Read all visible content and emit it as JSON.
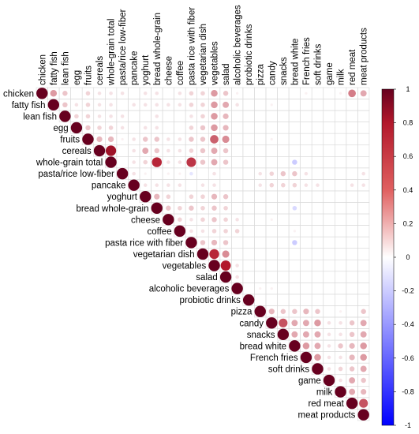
{
  "chart_data": {
    "type": "heatmap",
    "shape": "upper-triangle-circles",
    "title": "",
    "variables": [
      "chicken",
      "fatty fish",
      "lean fish",
      "egg",
      "fruits",
      "cereals",
      "whole-grain total",
      "pasta/rice low-fiber",
      "pancake",
      "yoghurt",
      "bread whole-grain",
      "cheese",
      "coffee",
      "pasta rice with fiber",
      "vegetarian dish",
      "vegetables",
      "salad",
      "alcoholic beverages",
      "probiotic drinks",
      "pizza",
      "candy",
      "snacks",
      "bread white",
      "French fries",
      "soft drinks",
      "game",
      "milk",
      "red meat",
      "meat products"
    ],
    "correlations": [
      {
        "i": 0,
        "j": 23,
        "r": 0.05
      },
      {
        "i": 0,
        "j": 26,
        "r": 0.05
      },
      {
        "i": 0,
        "j": 27,
        "r": 0.45
      },
      {
        "i": 0,
        "j": 28,
        "r": 0.3
      },
      {
        "i": 0,
        "j": 1,
        "r": 0.35
      },
      {
        "i": 0,
        "j": 2,
        "r": 0.2
      },
      {
        "i": 0,
        "j": 4,
        "r": 0.15
      },
      {
        "i": 0,
        "j": 5,
        "r": 0.1
      },
      {
        "i": 0,
        "j": 6,
        "r": 0.1
      },
      {
        "i": 0,
        "j": 7,
        "r": 0.1
      },
      {
        "i": 0,
        "j": 9,
        "r": 0.1
      },
      {
        "i": 0,
        "j": 10,
        "r": 0.1
      },
      {
        "i": 0,
        "j": 12,
        "r": 0.1
      },
      {
        "i": 0,
        "j": 13,
        "r": 0.15
      },
      {
        "i": 0,
        "j": 14,
        "r": 0.15
      },
      {
        "i": 0,
        "j": 15,
        "r": 0.35
      },
      {
        "i": 0,
        "j": 16,
        "r": 0.2
      },
      {
        "i": 0,
        "j": 17,
        "r": 0.05
      },
      {
        "i": 1,
        "j": 2,
        "r": 0.2
      },
      {
        "i": 1,
        "j": 3,
        "r": 0.1
      },
      {
        "i": 1,
        "j": 4,
        "r": 0.15
      },
      {
        "i": 1,
        "j": 5,
        "r": 0.1
      },
      {
        "i": 1,
        "j": 6,
        "r": 0.1
      },
      {
        "i": 1,
        "j": 8,
        "r": 0.1
      },
      {
        "i": 1,
        "j": 9,
        "r": 0.1
      },
      {
        "i": 1,
        "j": 10,
        "r": 0.1
      },
      {
        "i": 1,
        "j": 11,
        "r": 0.1
      },
      {
        "i": 1,
        "j": 12,
        "r": 0.1
      },
      {
        "i": 1,
        "j": 13,
        "r": 0.15
      },
      {
        "i": 1,
        "j": 14,
        "r": 0.15
      },
      {
        "i": 1,
        "j": 15,
        "r": 0.35
      },
      {
        "i": 1,
        "j": 16,
        "r": 0.3
      },
      {
        "i": 1,
        "j": 17,
        "r": 0.1
      },
      {
        "i": 1,
        "j": 20,
        "r": 0.05
      },
      {
        "i": 2,
        "j": 3,
        "r": 0.15
      },
      {
        "i": 2,
        "j": 4,
        "r": 0.15
      },
      {
        "i": 2,
        "j": 5,
        "r": 0.1
      },
      {
        "i": 2,
        "j": 6,
        "r": 0.1
      },
      {
        "i": 2,
        "j": 7,
        "r": 0.1
      },
      {
        "i": 2,
        "j": 10,
        "r": 0.1
      },
      {
        "i": 2,
        "j": 13,
        "r": 0.1
      },
      {
        "i": 2,
        "j": 14,
        "r": 0.15
      },
      {
        "i": 2,
        "j": 15,
        "r": 0.35
      },
      {
        "i": 2,
        "j": 16,
        "r": 0.25
      },
      {
        "i": 3,
        "j": 4,
        "r": 0.2
      },
      {
        "i": 3,
        "j": 5,
        "r": 0.15
      },
      {
        "i": 3,
        "j": 6,
        "r": 0.15
      },
      {
        "i": 3,
        "j": 7,
        "r": 0.1
      },
      {
        "i": 3,
        "j": 9,
        "r": 0.1
      },
      {
        "i": 3,
        "j": 10,
        "r": 0.1
      },
      {
        "i": 3,
        "j": 13,
        "r": 0.15
      },
      {
        "i": 3,
        "j": 14,
        "r": 0.2
      },
      {
        "i": 3,
        "j": 15,
        "r": 0.35
      },
      {
        "i": 3,
        "j": 16,
        "r": 0.25
      },
      {
        "i": 4,
        "j": 5,
        "r": 0.25
      },
      {
        "i": 4,
        "j": 6,
        "r": 0.25
      },
      {
        "i": 4,
        "j": 7,
        "r": 0.05
      },
      {
        "i": 4,
        "j": 8,
        "r": 0.1
      },
      {
        "i": 4,
        "j": 9,
        "r": 0.2
      },
      {
        "i": 4,
        "j": 10,
        "r": 0.2
      },
      {
        "i": 4,
        "j": 11,
        "r": 0.1
      },
      {
        "i": 4,
        "j": 12,
        "r": 0.1
      },
      {
        "i": 4,
        "j": 13,
        "r": 0.2
      },
      {
        "i": 4,
        "j": 14,
        "r": 0.2
      },
      {
        "i": 4,
        "j": 15,
        "r": 0.55
      },
      {
        "i": 4,
        "j": 16,
        "r": 0.4
      },
      {
        "i": 4,
        "j": 20,
        "r": 0.05
      },
      {
        "i": 5,
        "j": 6,
        "r": 0.85
      },
      {
        "i": 5,
        "j": 8,
        "r": 0.1
      },
      {
        "i": 5,
        "j": 9,
        "r": 0.3
      },
      {
        "i": 5,
        "j": 10,
        "r": 0.2
      },
      {
        "i": 5,
        "j": 11,
        "r": 0.1
      },
      {
        "i": 5,
        "j": 12,
        "r": 0.1
      },
      {
        "i": 5,
        "j": 13,
        "r": 0.15
      },
      {
        "i": 5,
        "j": 14,
        "r": 0.2
      },
      {
        "i": 5,
        "j": 15,
        "r": 0.3
      },
      {
        "i": 5,
        "j": 16,
        "r": 0.2
      },
      {
        "i": 6,
        "j": 8,
        "r": 0.1
      },
      {
        "i": 6,
        "j": 9,
        "r": 0.15
      },
      {
        "i": 6,
        "j": 10,
        "r": 0.75
      },
      {
        "i": 6,
        "j": 11,
        "r": 0.1
      },
      {
        "i": 6,
        "j": 12,
        "r": 0.1
      },
      {
        "i": 6,
        "j": 13,
        "r": 0.7
      },
      {
        "i": 6,
        "j": 14,
        "r": 0.2
      },
      {
        "i": 6,
        "j": 15,
        "r": 0.3
      },
      {
        "i": 6,
        "j": 16,
        "r": 0.2
      },
      {
        "i": 6,
        "j": 22,
        "r": -0.2
      },
      {
        "i": 7,
        "j": 8,
        "r": 0.1
      },
      {
        "i": 7,
        "j": 9,
        "r": 0.05
      },
      {
        "i": 7,
        "j": 11,
        "r": 0.05
      },
      {
        "i": 7,
        "j": 12,
        "r": 0.05
      },
      {
        "i": 7,
        "j": 13,
        "r": -0.1
      },
      {
        "i": 7,
        "j": 15,
        "r": 0.1
      },
      {
        "i": 7,
        "j": 19,
        "r": 0.1
      },
      {
        "i": 7,
        "j": 20,
        "r": 0.15
      },
      {
        "i": 7,
        "j": 21,
        "r": 0.2
      },
      {
        "i": 7,
        "j": 22,
        "r": 0.2
      },
      {
        "i": 7,
        "j": 23,
        "r": 0.1
      },
      {
        "i": 7,
        "j": 28,
        "r": 0.1
      },
      {
        "i": 8,
        "j": 9,
        "r": 0.1
      },
      {
        "i": 8,
        "j": 10,
        "r": 0.1
      },
      {
        "i": 8,
        "j": 11,
        "r": 0.1
      },
      {
        "i": 8,
        "j": 12,
        "r": 0.1
      },
      {
        "i": 8,
        "j": 14,
        "r": 0.1
      },
      {
        "i": 8,
        "j": 15,
        "r": 0.1
      },
      {
        "i": 8,
        "j": 19,
        "r": 0.1
      },
      {
        "i": 8,
        "j": 20,
        "r": 0.15
      },
      {
        "i": 8,
        "j": 21,
        "r": 0.15
      },
      {
        "i": 8,
        "j": 22,
        "r": 0.15
      },
      {
        "i": 8,
        "j": 23,
        "r": 0.1
      },
      {
        "i": 8,
        "j": 24,
        "r": 0.1
      },
      {
        "i": 8,
        "j": 27,
        "r": 0.1
      },
      {
        "i": 8,
        "j": 28,
        "r": 0.1
      },
      {
        "i": 9,
        "j": 10,
        "r": 0.25
      },
      {
        "i": 9,
        "j": 11,
        "r": 0.15
      },
      {
        "i": 9,
        "j": 13,
        "r": 0.15
      },
      {
        "i": 9,
        "j": 14,
        "r": 0.15
      },
      {
        "i": 9,
        "j": 15,
        "r": 0.25
      },
      {
        "i": 9,
        "j": 16,
        "r": 0.2
      },
      {
        "i": 10,
        "j": 11,
        "r": 0.2
      },
      {
        "i": 10,
        "j": 12,
        "r": 0.15
      },
      {
        "i": 10,
        "j": 13,
        "r": 0.2
      },
      {
        "i": 10,
        "j": 14,
        "r": 0.15
      },
      {
        "i": 10,
        "j": 15,
        "r": 0.2
      },
      {
        "i": 10,
        "j": 16,
        "r": 0.15
      },
      {
        "i": 10,
        "j": 22,
        "r": -0.15
      },
      {
        "i": 11,
        "j": 12,
        "r": 0.15
      },
      {
        "i": 11,
        "j": 13,
        "r": 0.1
      },
      {
        "i": 11,
        "j": 14,
        "r": 0.15
      },
      {
        "i": 11,
        "j": 15,
        "r": 0.2
      },
      {
        "i": 11,
        "j": 16,
        "r": 0.15
      },
      {
        "i": 11,
        "j": 17,
        "r": 0.1
      },
      {
        "i": 11,
        "j": 20,
        "r": 0.05
      },
      {
        "i": 12,
        "j": 13,
        "r": 0.1
      },
      {
        "i": 12,
        "j": 14,
        "r": 0.1
      },
      {
        "i": 12,
        "j": 15,
        "r": 0.15
      },
      {
        "i": 12,
        "j": 16,
        "r": 0.15
      },
      {
        "i": 12,
        "j": 17,
        "r": 0.15
      },
      {
        "i": 12,
        "j": 22,
        "r": 0.05
      },
      {
        "i": 13,
        "j": 14,
        "r": 0.2
      },
      {
        "i": 13,
        "j": 15,
        "r": 0.25
      },
      {
        "i": 13,
        "j": 16,
        "r": 0.2
      },
      {
        "i": 13,
        "j": 22,
        "r": -0.2
      },
      {
        "i": 14,
        "j": 15,
        "r": 0.75
      },
      {
        "i": 14,
        "j": 16,
        "r": 0.4
      },
      {
        "i": 15,
        "j": 16,
        "r": 0.8
      },
      {
        "i": 15,
        "j": 17,
        "r": 0.1
      },
      {
        "i": 16,
        "j": 17,
        "r": 0.1
      },
      {
        "i": 17,
        "j": 19,
        "r": 0.05
      },
      {
        "i": 17,
        "j": 20,
        "r": 0.05
      },
      {
        "i": 19,
        "j": 20,
        "r": 0.25
      },
      {
        "i": 19,
        "j": 21,
        "r": 0.2
      },
      {
        "i": 19,
        "j": 22,
        "r": 0.2
      },
      {
        "i": 19,
        "j": 23,
        "r": 0.25
      },
      {
        "i": 19,
        "j": 24,
        "r": 0.2
      },
      {
        "i": 19,
        "j": 26,
        "r": 0.05
      },
      {
        "i": 19,
        "j": 28,
        "r": 0.2
      },
      {
        "i": 20,
        "j": 21,
        "r": 0.6
      },
      {
        "i": 20,
        "j": 22,
        "r": 0.3
      },
      {
        "i": 20,
        "j": 23,
        "r": 0.3
      },
      {
        "i": 20,
        "j": 24,
        "r": 0.35
      },
      {
        "i": 20,
        "j": 25,
        "r": 0.1
      },
      {
        "i": 20,
        "j": 26,
        "r": 0.1
      },
      {
        "i": 20,
        "j": 27,
        "r": 0.2
      },
      {
        "i": 20,
        "j": 28,
        "r": 0.3
      },
      {
        "i": 21,
        "j": 22,
        "r": 0.3
      },
      {
        "i": 21,
        "j": 23,
        "r": 0.3
      },
      {
        "i": 21,
        "j": 24,
        "r": 0.3
      },
      {
        "i": 21,
        "j": 25,
        "r": 0.1
      },
      {
        "i": 21,
        "j": 26,
        "r": 0.1
      },
      {
        "i": 21,
        "j": 27,
        "r": 0.2
      },
      {
        "i": 21,
        "j": 28,
        "r": 0.3
      },
      {
        "i": 22,
        "j": 23,
        "r": 0.35
      },
      {
        "i": 22,
        "j": 24,
        "r": 0.3
      },
      {
        "i": 22,
        "j": 25,
        "r": 0.1
      },
      {
        "i": 22,
        "j": 26,
        "r": 0.2
      },
      {
        "i": 22,
        "j": 27,
        "r": 0.25
      },
      {
        "i": 22,
        "j": 28,
        "r": 0.35
      },
      {
        "i": 23,
        "j": 24,
        "r": 0.35
      },
      {
        "i": 23,
        "j": 25,
        "r": 0.1
      },
      {
        "i": 23,
        "j": 26,
        "r": 0.1
      },
      {
        "i": 23,
        "j": 27,
        "r": 0.25
      },
      {
        "i": 23,
        "j": 28,
        "r": 0.35
      },
      {
        "i": 24,
        "j": 25,
        "r": 0.1
      },
      {
        "i": 24,
        "j": 26,
        "r": 0.15
      },
      {
        "i": 24,
        "j": 27,
        "r": 0.2
      },
      {
        "i": 24,
        "j": 28,
        "r": 0.3
      },
      {
        "i": 25,
        "j": 26,
        "r": 0.1
      },
      {
        "i": 25,
        "j": 27,
        "r": 0.3
      },
      {
        "i": 25,
        "j": 28,
        "r": 0.2
      },
      {
        "i": 26,
        "j": 27,
        "r": 0.3
      },
      {
        "i": 26,
        "j": 28,
        "r": 0.25
      },
      {
        "i": 27,
        "j": 28,
        "r": 0.6
      }
    ],
    "colorbar": {
      "min": -1,
      "max": 1,
      "ticks": [
        "1",
        "0.8",
        "0.6",
        "0.4",
        "0.2",
        "0",
        "-0.2",
        "-0.4",
        "-0.6",
        "-0.8",
        "-1"
      ],
      "colors": {
        "negative": "#0000ff",
        "zero": "#ffffff",
        "positive": "#b2182b"
      }
    },
    "grid": true
  }
}
